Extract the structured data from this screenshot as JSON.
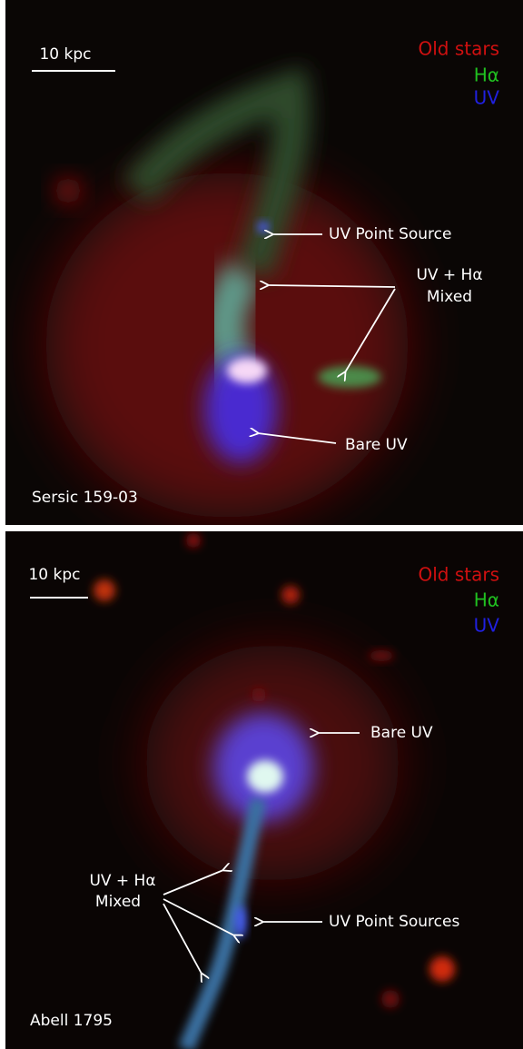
{
  "panels": [
    {
      "name": "Sersic 159-03",
      "scale_bar": "10 kpc",
      "legend": [
        "Old stars",
        "Hα",
        "UV"
      ],
      "annotations": [
        {
          "lines": [
            "UV Point Source"
          ]
        },
        {
          "lines": [
            "UV + Hα",
            "Mixed"
          ]
        },
        {
          "lines": [
            "Bare UV"
          ]
        }
      ]
    },
    {
      "name": "Abell 1795",
      "scale_bar": "10 kpc",
      "legend": [
        "Old stars",
        "Hα",
        "UV"
      ],
      "annotations": [
        {
          "lines": [
            "Bare UV"
          ]
        },
        {
          "lines": [
            "UV + Hα",
            "Mixed"
          ]
        },
        {
          "lines": [
            "UV Point Sources"
          ]
        }
      ]
    }
  ]
}
